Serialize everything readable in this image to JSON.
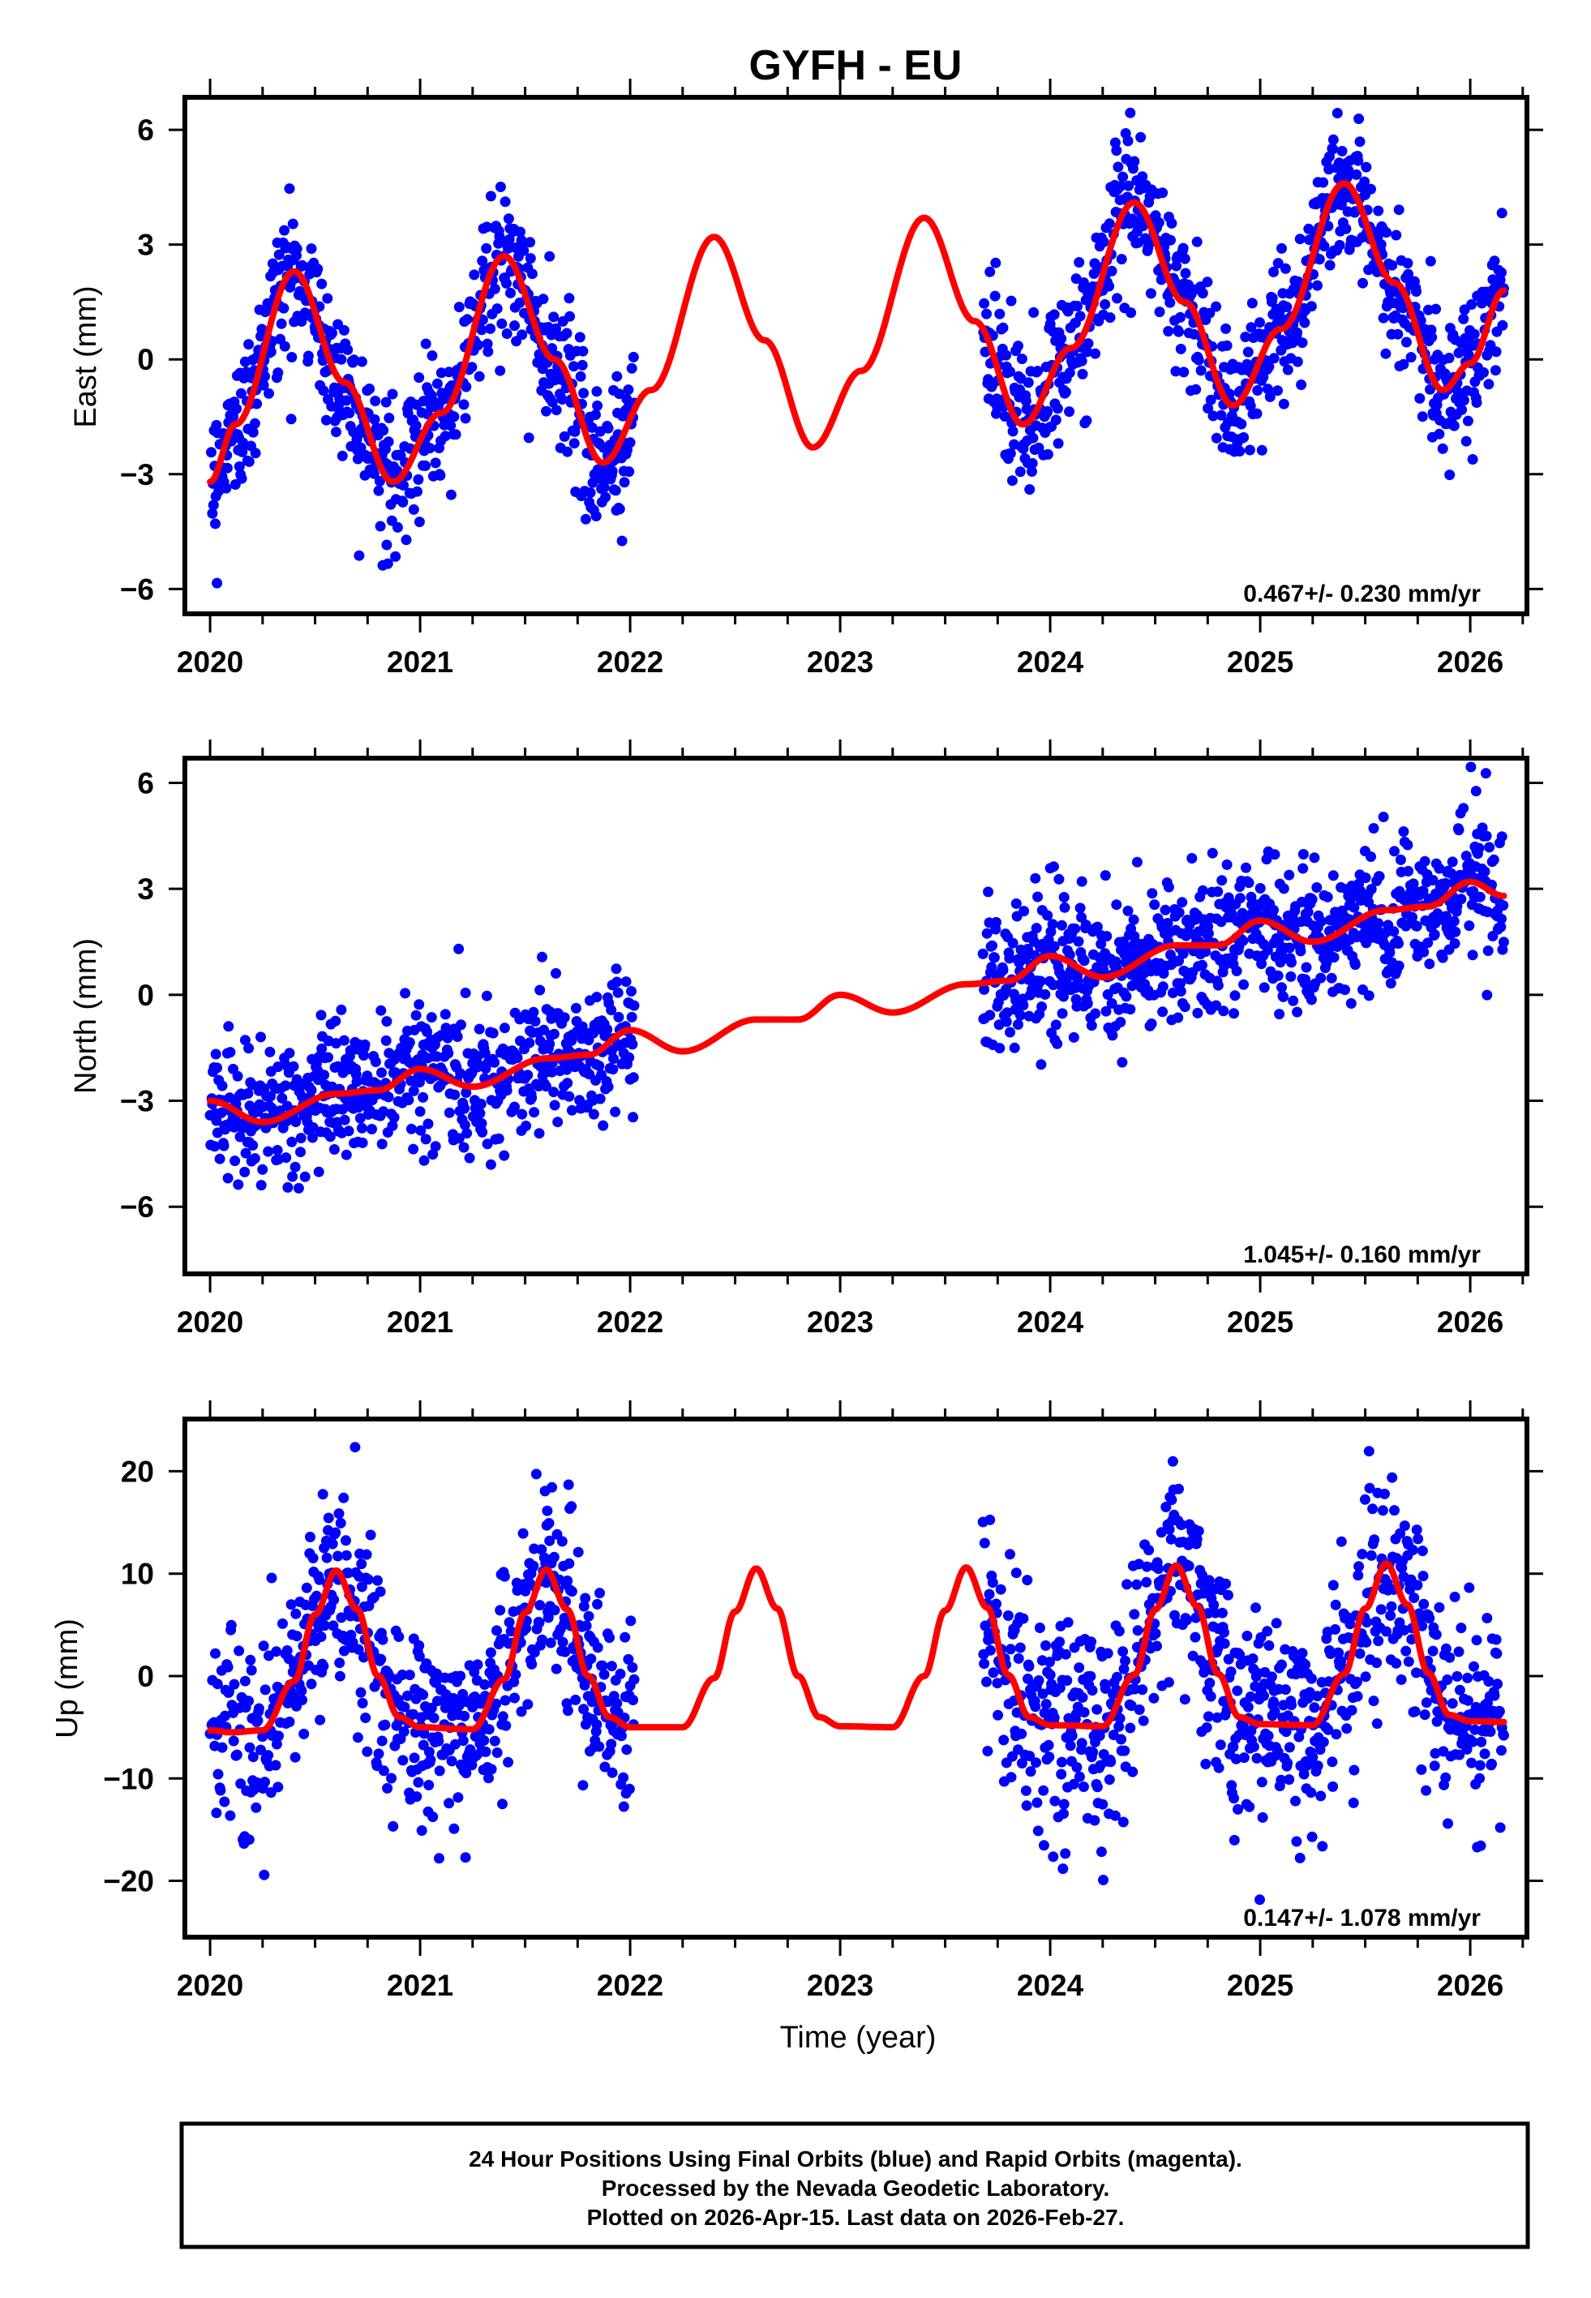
{
  "chart_data": {
    "title": "GYFH - EU",
    "type": "scatter",
    "xlabel": "Time (year)",
    "xlim": [
      2019.88,
      2026.27
    ],
    "x_ticks": [
      2020,
      2021,
      2022,
      2023,
      2024,
      2025,
      2026
    ],
    "x_minor_step": 0.25,
    "colors": {
      "data": "#0000ff",
      "model": "#ff0000",
      "frame": "#000000"
    },
    "panels": [
      {
        "name": "east",
        "ylabel": "East (mm)",
        "ylim": [
          -6.65,
          6.85
        ],
        "y_ticks": [
          -6,
          -3,
          0,
          3,
          6
        ],
        "rate_label": "0.467+/- 0.230 mm/yr",
        "data_spans": [
          [
            2020.0,
            2022.02
          ],
          [
            2023.68,
            2026.16
          ]
        ],
        "noise_sd": 0.95,
        "model": {
          "x": [
            2020.0,
            2020.12,
            2020.4,
            2020.64,
            2020.87,
            2021.1,
            2021.4,
            2021.64,
            2021.87,
            2022.1,
            2022.4,
            2022.64,
            2022.87,
            2023.1,
            2023.4,
            2023.64,
            2023.87,
            2024.1,
            2024.4,
            2024.64,
            2024.87,
            2025.1,
            2025.4,
            2025.64,
            2025.87,
            2026.0,
            2026.16
          ],
          "y": [
            -3.2,
            -1.7,
            2.3,
            -0.6,
            -3.2,
            -1.4,
            2.7,
            0.0,
            -2.7,
            -0.8,
            3.2,
            0.5,
            -2.3,
            -0.3,
            3.7,
            1.0,
            -1.7,
            0.3,
            4.1,
            1.5,
            -1.2,
            0.8,
            4.6,
            2.0,
            -0.8,
            -0.1,
            1.8
          ]
        }
      },
      {
        "name": "north",
        "ylabel": "North (mm)",
        "ylim": [
          -7.9,
          6.7
        ],
        "y_ticks": [
          -6,
          -3,
          0,
          3,
          6
        ],
        "rate_label": "1.045+/- 0.160 mm/yr",
        "data_spans": [
          [
            2020.0,
            2022.02
          ],
          [
            2023.68,
            2026.16
          ]
        ],
        "noise_sd": 1.0,
        "model": {
          "x": [
            2020.0,
            2020.25,
            2020.6,
            2020.8,
            2021.0,
            2021.25,
            2021.6,
            2021.8,
            2022.0,
            2022.25,
            2022.6,
            2022.8,
            2023.0,
            2023.25,
            2023.6,
            2023.8,
            2024.0,
            2024.25,
            2024.6,
            2024.8,
            2025.0,
            2025.25,
            2025.6,
            2025.8,
            2026.0,
            2026.16
          ],
          "y": [
            -3.0,
            -3.6,
            -2.8,
            -2.7,
            -2.1,
            -2.6,
            -1.8,
            -1.7,
            -1.0,
            -1.6,
            -0.7,
            -0.7,
            0.0,
            -0.5,
            0.3,
            0.4,
            1.1,
            0.5,
            1.4,
            1.4,
            2.1,
            1.5,
            2.4,
            2.5,
            3.2,
            2.8
          ]
        }
      },
      {
        "name": "up",
        "ylabel": "Up (mm)",
        "ylim": [
          -25.5,
          25.1
        ],
        "y_ticks": [
          -20,
          -10,
          0,
          10,
          20
        ],
        "rate_label": "0.147+/- 1.078 mm/yr",
        "data_spans": [
          [
            2020.0,
            2022.02
          ],
          [
            2023.68,
            2026.16
          ]
        ],
        "noise_sd": 5.0,
        "model": {
          "x": [
            2020.0,
            2020.1,
            2020.25,
            2020.4,
            2020.5,
            2020.6,
            2020.7,
            2020.8,
            2020.9,
            2021.0,
            2021.25,
            2021.4,
            2021.5,
            2021.6,
            2021.7,
            2021.8,
            2021.9,
            2022.0,
            2022.25,
            2022.4,
            2022.5,
            2022.6,
            2022.7,
            2022.8,
            2022.9,
            2023.0,
            2023.25,
            2023.4,
            2023.5,
            2023.6,
            2023.7,
            2023.8,
            2023.9,
            2024.0,
            2024.25,
            2024.4,
            2024.5,
            2024.6,
            2024.7,
            2024.8,
            2024.9,
            2025.0,
            2025.25,
            2025.4,
            2025.5,
            2025.6,
            2025.7,
            2025.8,
            2025.9,
            2026.0,
            2026.16
          ],
          "y": [
            -5.3,
            -5.5,
            -5.3,
            -0.5,
            6.0,
            10.3,
            6.5,
            0.0,
            -4.0,
            -5.0,
            -5.2,
            -0.3,
            6.2,
            10.4,
            6.5,
            0.0,
            -4.0,
            -5.0,
            -5.0,
            -0.2,
            6.3,
            10.5,
            6.6,
            0.0,
            -4.0,
            -4.9,
            -5.0,
            0.0,
            6.4,
            10.6,
            6.7,
            0.1,
            -4.0,
            -4.8,
            -4.9,
            0.1,
            6.5,
            10.8,
            6.8,
            0.2,
            -4.0,
            -4.7,
            -4.8,
            0.2,
            6.6,
            11.0,
            7.0,
            0.3,
            -3.8,
            -4.4,
            -4.5
          ]
        }
      }
    ],
    "footer": [
      "24 Hour Positions Using Final Orbits (blue) and Rapid Orbits (magenta).",
      "Processed by the Nevada Geodetic Laboratory.",
      "Plotted on 2026-Apr-15. Last data on 2026-Feb-27."
    ]
  }
}
